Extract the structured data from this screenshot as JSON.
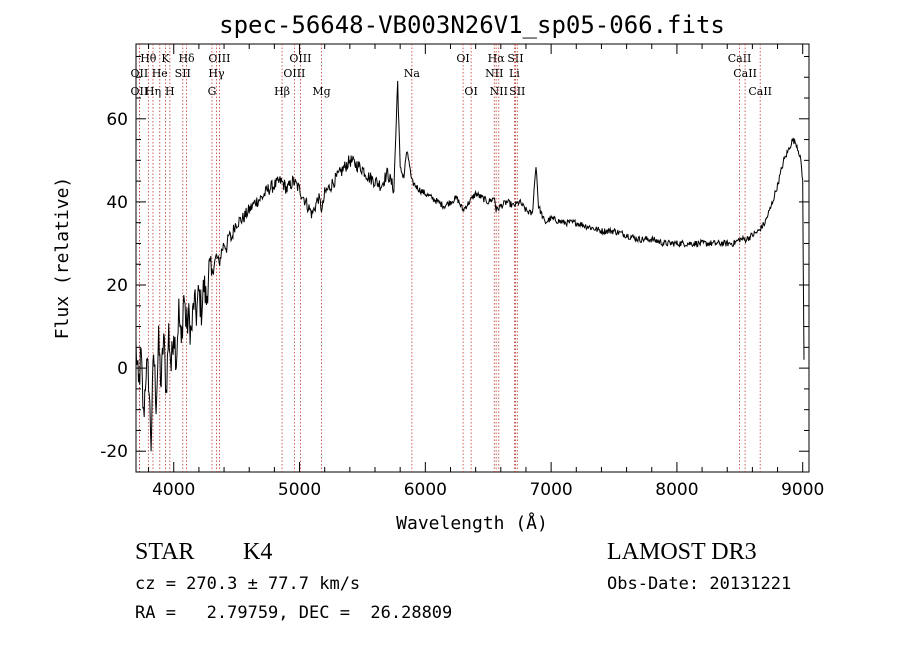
{
  "chart_data": {
    "type": "line",
    "title": "spec-56648-VB003N26V1_sp05-066.fits",
    "xlabel": "Wavelength (Å)",
    "ylabel": "Flux (relative)",
    "xlim": [
      3700,
      9050
    ],
    "ylim": [
      -25,
      78
    ],
    "xticks": [
      4000,
      5000,
      6000,
      7000,
      8000,
      9000
    ],
    "yticks": [
      -20,
      0,
      20,
      40,
      60
    ],
    "series": [
      {
        "name": "flux",
        "x": [
          3700,
          3720,
          3740,
          3760,
          3780,
          3800,
          3820,
          3840,
          3860,
          3880,
          3900,
          3920,
          3940,
          3960,
          3980,
          4000,
          4020,
          4040,
          4060,
          4080,
          4100,
          4120,
          4140,
          4160,
          4180,
          4200,
          4220,
          4240,
          4260,
          4280,
          4300,
          4320,
          4340,
          4360,
          4380,
          4400,
          4420,
          4440,
          4460,
          4480,
          4500,
          4550,
          4600,
          4650,
          4700,
          4750,
          4800,
          4850,
          4880,
          4900,
          4950,
          5000,
          5050,
          5100,
          5150,
          5180,
          5200,
          5250,
          5300,
          5350,
          5400,
          5450,
          5500,
          5550,
          5600,
          5650,
          5700,
          5750,
          5780,
          5800,
          5830,
          5850,
          5870,
          5890,
          5920,
          5950,
          6000,
          6050,
          6100,
          6150,
          6200,
          6250,
          6300,
          6350,
          6400,
          6450,
          6500,
          6550,
          6563,
          6600,
          6650,
          6700,
          6750,
          6800,
          6850,
          6880,
          6900,
          6950,
          7000,
          7100,
          7200,
          7300,
          7400,
          7500,
          7600,
          7700,
          7800,
          7900,
          8000,
          8100,
          8200,
          8300,
          8400,
          8450,
          8500,
          8550,
          8600,
          8650,
          8700,
          8750,
          8800,
          8850,
          8880,
          8920,
          8950,
          8980,
          9000,
          9010
        ],
        "values": [
          5,
          -5,
          3,
          -12,
          0,
          -2,
          -18,
          4,
          -8,
          6,
          -4,
          8,
          -6,
          9,
          0,
          10,
          2,
          14,
          5,
          18,
          10,
          12,
          8,
          16,
          13,
          18,
          14,
          20,
          16,
          24,
          22,
          25,
          27,
          25,
          28,
          30,
          29,
          32,
          31,
          34,
          35,
          36,
          38,
          40,
          41,
          43,
          44,
          45,
          44,
          43,
          45,
          43,
          40,
          37,
          41,
          38,
          42,
          44,
          46,
          48,
          50,
          49,
          48,
          46,
          45,
          44,
          47,
          43,
          69,
          48,
          46,
          52,
          50,
          45,
          44,
          43,
          42,
          41,
          40,
          39,
          40,
          41,
          38,
          40,
          42,
          41,
          40,
          41,
          38,
          39,
          40,
          39,
          40,
          38,
          37,
          49,
          39,
          35,
          36,
          35,
          35,
          34,
          33,
          33,
          32,
          31,
          31,
          30,
          30,
          30,
          30,
          30,
          30,
          30,
          31,
          31,
          32,
          33,
          35,
          39,
          44,
          50,
          52,
          55,
          54,
          51,
          45,
          2
        ]
      }
    ],
    "spectral_lines": {
      "row1": [
        {
          "label": "Hθ",
          "wl": 3798
        },
        {
          "label": "K",
          "wl": 3934
        },
        {
          "label": "Hδ",
          "wl": 4102
        },
        {
          "label": "OIII",
          "wl": 4363
        },
        {
          "label": "OIII",
          "wl": 5007
        },
        {
          "label": "OI",
          "wl": 6300
        },
        {
          "label": "Hα",
          "wl": 6563
        },
        {
          "label": "SII",
          "wl": 6717
        },
        {
          "label": "CaII",
          "wl": 8498
        }
      ],
      "row2": [
        {
          "label": "OII",
          "wl": 3727
        },
        {
          "label": "He",
          "wl": 3889
        },
        {
          "label": "SII",
          "wl": 4072
        },
        {
          "label": "Hγ",
          "wl": 4340
        },
        {
          "label": "OIII",
          "wl": 4959
        },
        {
          "label": "Na",
          "wl": 5893
        },
        {
          "label": "NII",
          "wl": 6548
        },
        {
          "label": "Li",
          "wl": 6708
        },
        {
          "label": "CaII",
          "wl": 8542
        }
      ],
      "row3": [
        {
          "label": "OII",
          "wl": 3727
        },
        {
          "label": "Hη",
          "wl": 3835
        },
        {
          "label": "H",
          "wl": 3969
        },
        {
          "label": "G",
          "wl": 4304
        },
        {
          "label": "Hβ",
          "wl": 4861
        },
        {
          "label": "Mg",
          "wl": 5175
        },
        {
          "label": "OI",
          "wl": 6364
        },
        {
          "label": "NII",
          "wl": 6584
        },
        {
          "label": "SII",
          "wl": 6731
        },
        {
          "label": "CaII",
          "wl": 8662
        }
      ]
    }
  },
  "info": {
    "object_class": "STAR",
    "subclass": "K4",
    "survey": "LAMOST DR3",
    "cz": "cz = 270.3 ± 77.7 km/s",
    "obs_date": "Obs-Date: 20131221",
    "coords": "RA =   2.79759, DEC =  26.28809"
  }
}
